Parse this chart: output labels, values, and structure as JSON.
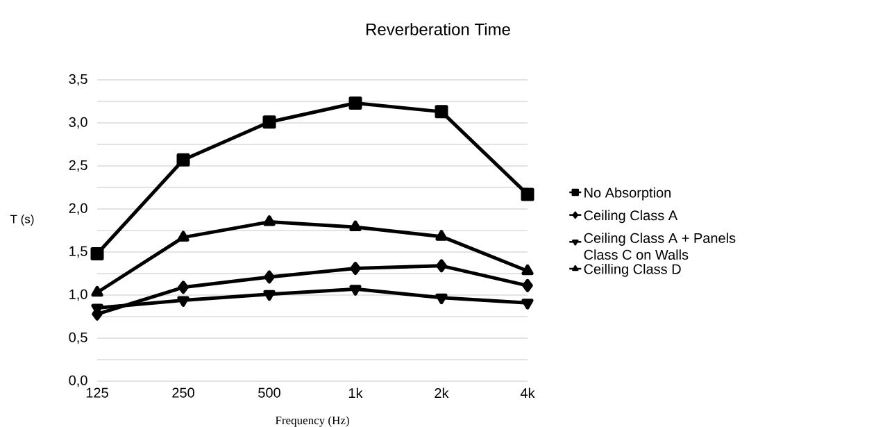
{
  "chart_data": {
    "type": "line",
    "title": "Reverberation Time",
    "xlabel": "Frequency (Hz)",
    "ylabel": "T (s)",
    "categories": [
      "125",
      "250",
      "500",
      "1k",
      "2k",
      "4k"
    ],
    "series": [
      {
        "name": "No Absorption",
        "color": "#000000",
        "marker": "square",
        "values": [
          1.48,
          2.57,
          3.01,
          3.23,
          3.13,
          2.17
        ]
      },
      {
        "name": "Ceiling Class A",
        "color": "#000000",
        "marker": "diamond",
        "values": [
          0.78,
          1.09,
          1.21,
          1.31,
          1.34,
          1.11
        ]
      },
      {
        "name": "Ceiling Class A + Panels Class C on Walls",
        "color": "#000000",
        "marker": "triangle-down",
        "values": [
          0.85,
          0.94,
          1.01,
          1.07,
          0.97,
          0.91
        ]
      },
      {
        "name": "Ceilling Class D",
        "color": "#000000",
        "marker": "triangle",
        "values": [
          1.03,
          1.67,
          1.85,
          1.79,
          1.68,
          1.28
        ]
      }
    ],
    "ylim": [
      0,
      3.5
    ],
    "yticks": [
      {
        "value": 0,
        "label": "0,0"
      },
      {
        "value": 0.25,
        "label": null
      },
      {
        "value": 0.5,
        "label": "0,5"
      },
      {
        "value": 0.75,
        "label": null
      },
      {
        "value": 1,
        "label": "1,0"
      },
      {
        "value": 1.25,
        "label": null
      },
      {
        "value": 1.5,
        "label": "1,5"
      },
      {
        "value": 1.75,
        "label": null
      },
      {
        "value": 2,
        "label": "2,0"
      },
      {
        "value": 2.25,
        "label": null
      },
      {
        "value": 2.5,
        "label": "2,5"
      },
      {
        "value": 2.75,
        "label": null
      },
      {
        "value": 3,
        "label": "3,0"
      },
      {
        "value": 3.25,
        "label": null
      },
      {
        "value": 3.5,
        "label": "3,5"
      }
    ],
    "grid": "y",
    "legend": "right",
    "line_style": "solid"
  }
}
